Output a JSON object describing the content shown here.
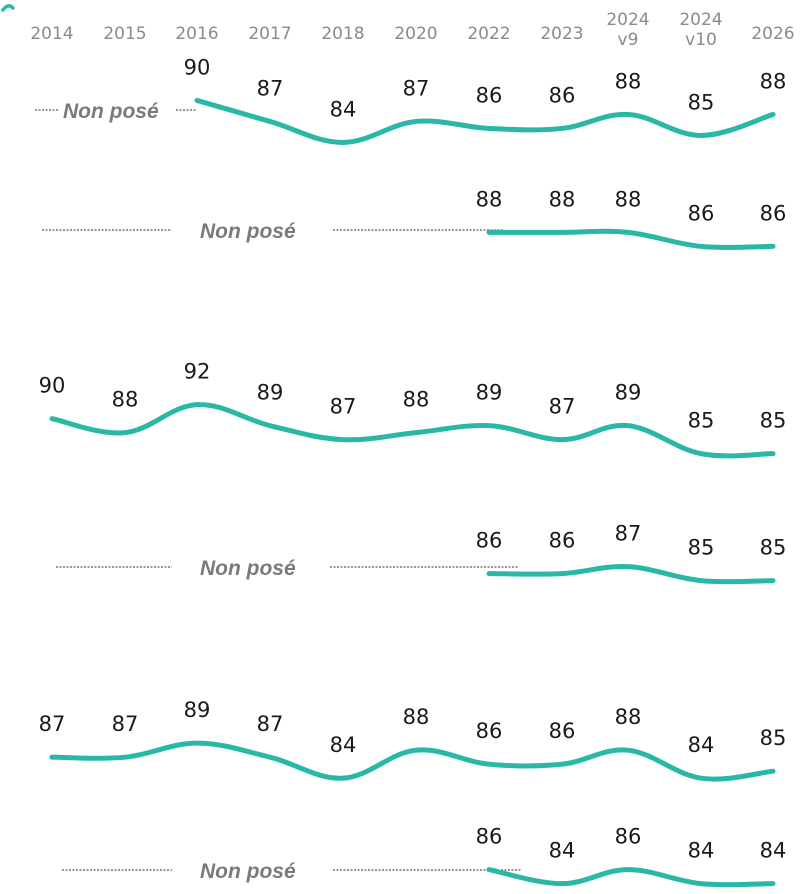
{
  "colors": {
    "line": "#2ab8a6",
    "tick": "#8a8a8a",
    "value": "#1a1a1a",
    "not_asked": "#7a7a7a"
  },
  "chart_data": {
    "type": "line",
    "categories": [
      "2014",
      "2015",
      "2016",
      "2017",
      "2018",
      "2020",
      "2022",
      "2023",
      "2024 v9",
      "2024 v10",
      "2026"
    ],
    "tick_labels": [
      [
        "2014"
      ],
      [
        "2015"
      ],
      [
        "2016"
      ],
      [
        "2017"
      ],
      [
        "2018"
      ],
      [
        "2020"
      ],
      [
        "2022"
      ],
      [
        "2023"
      ],
      [
        "2024",
        "v9"
      ],
      [
        "2024",
        "v10"
      ],
      [
        "2026"
      ]
    ],
    "not_asked_label": "Non posé",
    "series": [
      {
        "values": [
          null,
          null,
          90,
          87,
          84,
          87,
          86,
          86,
          88,
          85,
          88
        ]
      },
      {
        "values": [
          null,
          null,
          null,
          null,
          null,
          null,
          88,
          88,
          88,
          86,
          86
        ]
      },
      {
        "values": [
          90,
          88,
          92,
          89,
          87,
          88,
          89,
          87,
          89,
          85,
          85
        ]
      },
      {
        "values": [
          null,
          null,
          null,
          null,
          null,
          null,
          86,
          86,
          87,
          85,
          85
        ]
      },
      {
        "values": [
          87,
          87,
          89,
          87,
          84,
          88,
          86,
          86,
          88,
          84,
          85
        ]
      },
      {
        "values": [
          null,
          null,
          null,
          null,
          null,
          null,
          86,
          84,
          86,
          84,
          84
        ]
      }
    ]
  }
}
